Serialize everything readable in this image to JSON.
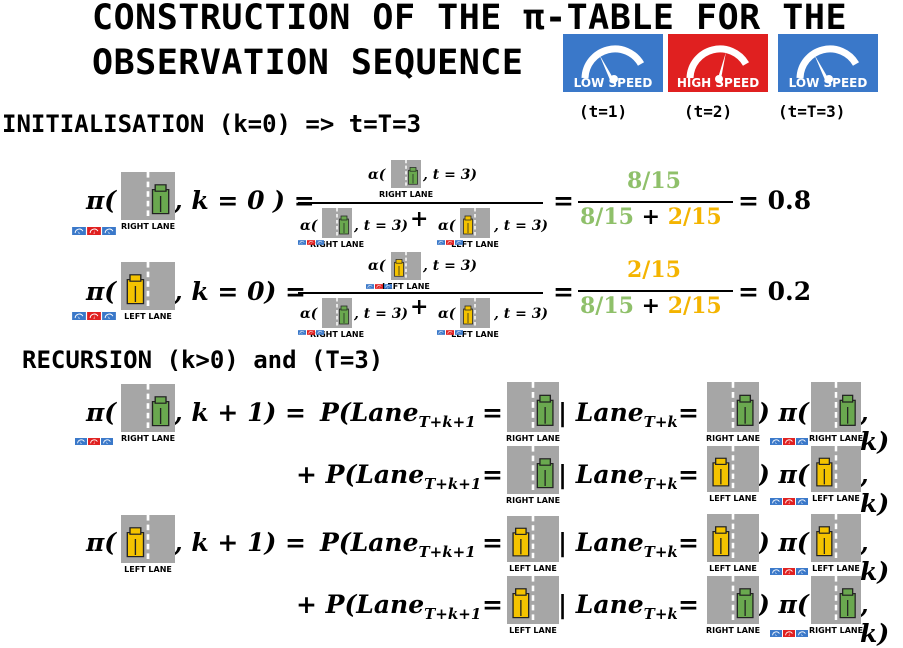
{
  "title": {
    "line1": "CONSTRUCTION OF THE π-TABLE FOR THE",
    "line2": "OBSERVATION SEQUENCE"
  },
  "observations": [
    {
      "label": "LOW SPEED",
      "time": "(t=1)",
      "color": "#3a78c9",
      "needle": "low"
    },
    {
      "label": "HIGH SPEED",
      "time": "(t=2)",
      "color": "#e02020",
      "needle": "high"
    },
    {
      "label": "LOW SPEED",
      "time": "(t=T=3)",
      "color": "#3a78c9",
      "needle": "low"
    }
  ],
  "sections": {
    "init": "INITIALISATION (k=0) => t=T=3",
    "recursion": "RECURSION (k>0) and (T=3)"
  },
  "lane_labels": {
    "right": "RIGHT LANE",
    "left": "LEFT LANE"
  },
  "math": {
    "pi": "π(",
    "alpha": "α(",
    "k0_right": ", k = 0 ) =",
    "k0_left": ", k = 0) =",
    "t3": ", t = 3)",
    "plus": "+",
    "equals": "=",
    "k1": ", k + 1) =",
    "p_lane": "P(Lane",
    "plus_p_lane": "+ P(Lane",
    "sub_next": "T+k+1",
    "sub_cur": "T+k",
    "bar_lane": "| Lane",
    "close_pi": ") π(",
    "comma_k": ", k)"
  },
  "init_values": {
    "right_num": "8/15",
    "right_den_a": "8/15",
    "right_den_b": "2/15",
    "right_result": "= 0.8",
    "left_num": "2/15",
    "left_den_a": "8/15",
    "left_den_b": "2/15",
    "left_result": "= 0.2"
  },
  "colors": {
    "green_value": "#8fc06a",
    "orange_value": "#f4b400",
    "road": "#a6a6a6",
    "green_car": "#6aa84f",
    "yellow_car": "#f4c300"
  }
}
